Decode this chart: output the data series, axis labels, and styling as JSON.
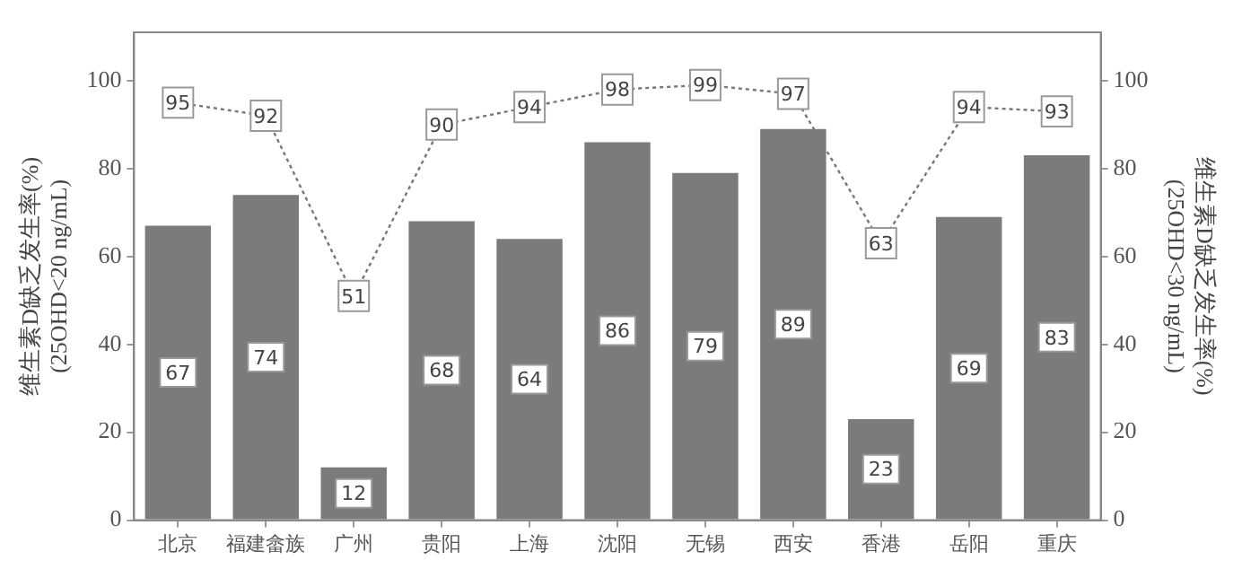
{
  "chart_data": {
    "type": "bar",
    "categories": [
      "北京",
      "福建畲族",
      "广州",
      "贵阳",
      "上海",
      "沈阳",
      "无锡",
      "西安",
      "香港",
      "岳阳",
      "重庆"
    ],
    "series": [
      {
        "color": "#7b7b7b",
        "values": [
          67,
          74,
          12,
          68,
          64,
          86,
          79,
          89,
          23,
          69,
          83
        ]
      },
      {
        "type": "line",
        "axis": "y2",
        "color": "#777777",
        "line_style": "dotted",
        "marker": "square",
        "values": [
          95,
          92,
          51,
          90,
          94,
          98,
          99,
          97,
          63,
          94,
          93
        ]
      }
    ],
    "ylabel": "维生素D缺乏发生率(%)\n(25OHD<20 ng/mL)",
    "y2label": "维生素D缺乏发生率(%)\n(25OHD<30 ng/mL)",
    "ylim": [
      0,
      111
    ],
    "yticks": [
      0,
      20,
      40,
      60,
      80,
      100
    ],
    "y2lim": [
      0,
      111
    ],
    "y2ticks": [
      0,
      20,
      40,
      60,
      80,
      100
    ],
    "data_labels": true,
    "grid": false,
    "legend": false
  }
}
